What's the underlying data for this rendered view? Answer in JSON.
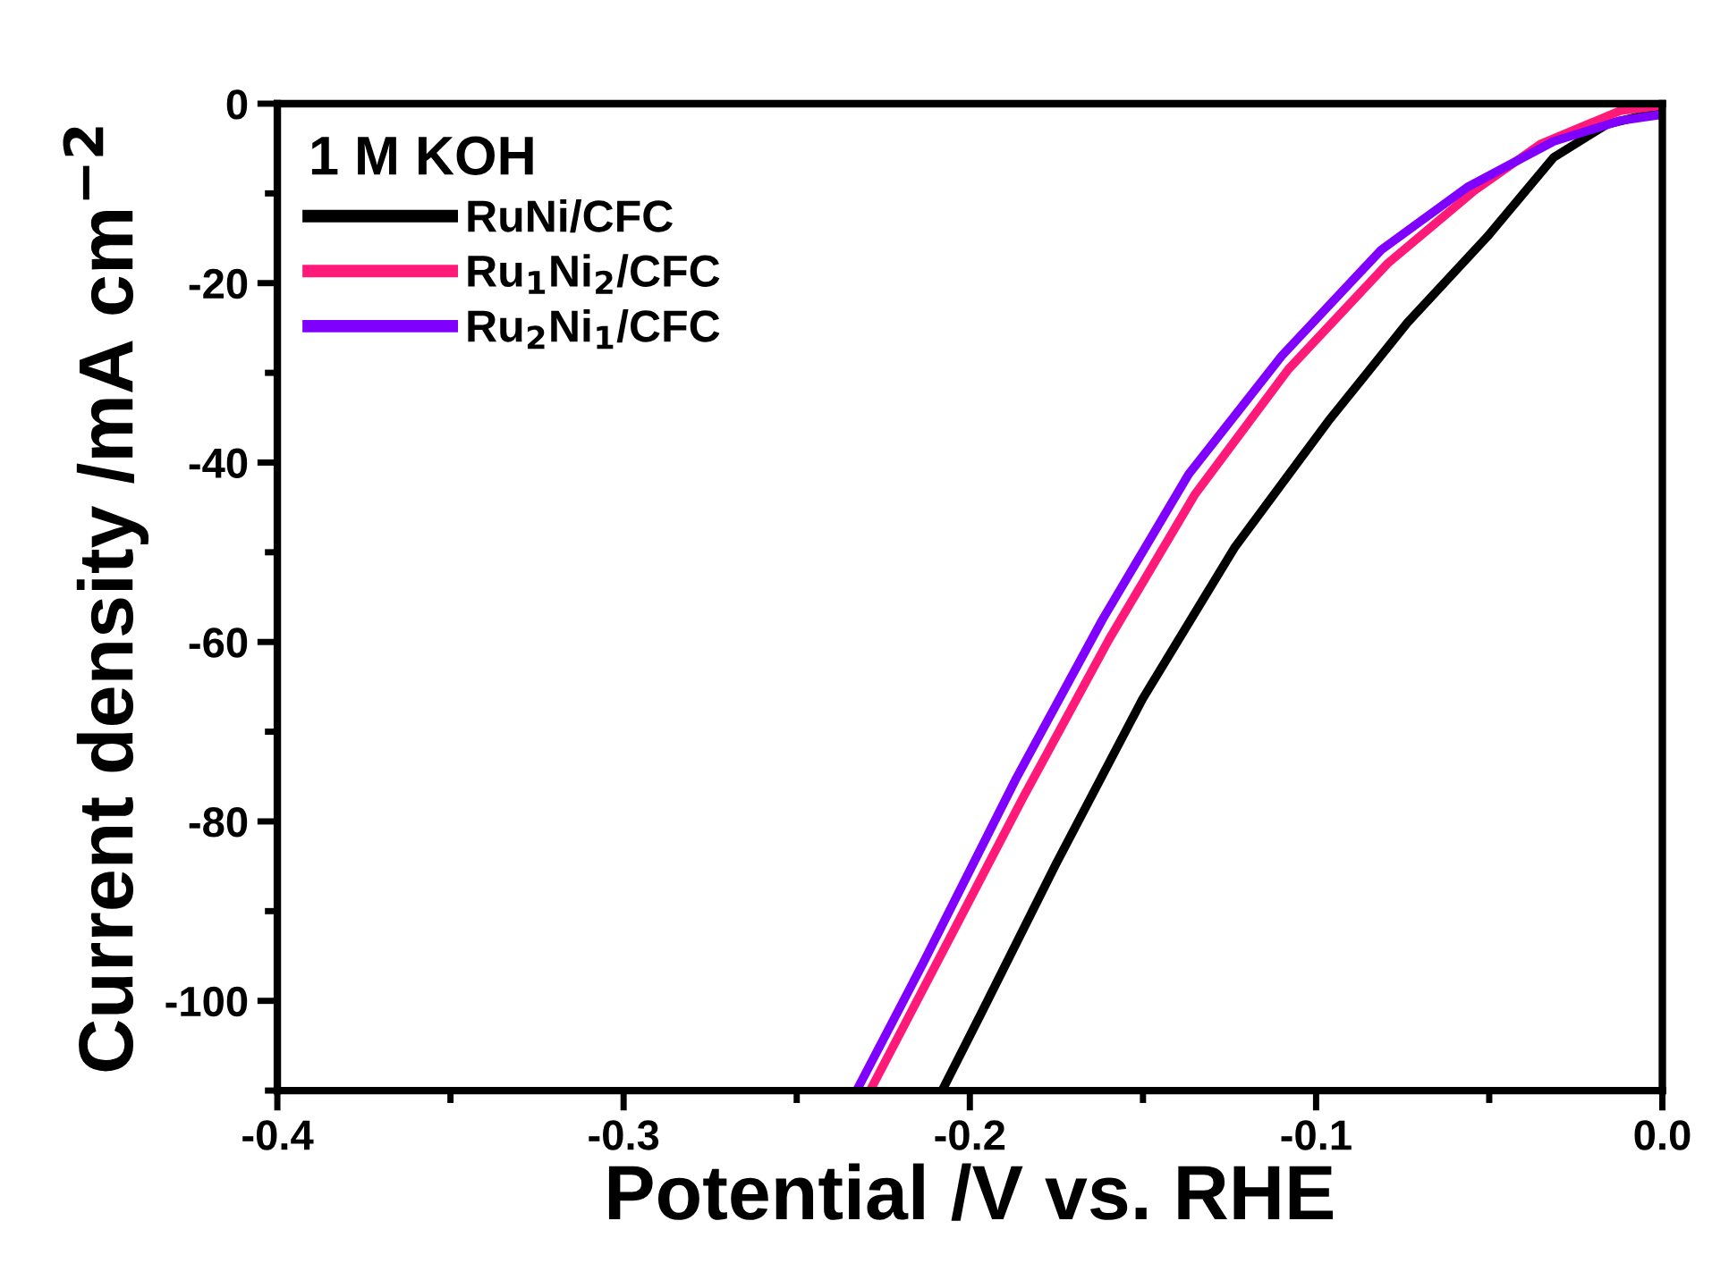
{
  "chart_data": {
    "type": "line",
    "xlabel": "Potential /V vs. RHE",
    "ylabel": "Current density /mA cm$^{−2}$",
    "legend_title": "1 M KOH",
    "legend": "top left",
    "grid": false,
    "line_style": "solid",
    "marker": "none",
    "xlim": [
      -0.4,
      0.0
    ],
    "ylim": [
      -110,
      0
    ],
    "xticks": [
      -0.4,
      {
        "value": -0.35,
        "label": null
      },
      -0.3,
      {
        "value": -0.25,
        "label": null
      },
      -0.2,
      {
        "value": -0.15,
        "label": null
      },
      -0.1,
      {
        "value": -0.05,
        "label": null
      },
      {
        "value": 0,
        "label": "0.0"
      }
    ],
    "yticks": [
      {
        "value": -110,
        "label": null
      },
      -100,
      {
        "value": -90,
        "label": null
      },
      -80,
      {
        "value": -70,
        "label": null
      },
      -60,
      {
        "value": -50,
        "label": null
      },
      -40,
      {
        "value": -30,
        "label": null
      },
      -20,
      {
        "value": -10,
        "label": null
      },
      0
    ],
    "series": [
      {
        "name": "RuNi/CFC",
        "color": "#000000",
        "x": [
          -0.208,
          -0.1962,
          -0.1752,
          -0.1502,
          -0.1234,
          -0.0965,
          -0.0736,
          -0.0505,
          -0.0314,
          -0.016,
          0.0
        ],
        "values": [
          -110,
          -101.0,
          -84.8,
          -66.4,
          -49.4,
          -35.4,
          -24.4,
          -14.8,
          -6.0,
          -2.3,
          -0.8
        ]
      },
      {
        "name": "Ru$_{1}$Ni$_{2}$/CFC",
        "color": "#ff1a7a",
        "x": [
          -0.2288,
          -0.2116,
          -0.1847,
          -0.1598,
          -0.1349,
          -0.108,
          -0.0793,
          -0.0543,
          -0.0352,
          -0.0122,
          0.0
        ],
        "values": [
          -110,
          -97.3,
          -77.4,
          -59.7,
          -43.5,
          -29.6,
          -17.8,
          -9.7,
          -4.5,
          -0.8,
          -0.2
        ]
      },
      {
        "name": "Ru$_{2}$Ni$_{1}$/CFC",
        "color": "#8000ff",
        "x": [
          -0.2327,
          -0.2135,
          -0.1866,
          -0.1617,
          -0.1368,
          -0.1099,
          -0.0812,
          -0.0563,
          -0.0314,
          -0.0122,
          0.0
        ],
        "values": [
          -110,
          -95.8,
          -75.2,
          -57.5,
          -41.3,
          -28.1,
          -16.3,
          -9.3,
          -4.2,
          -1.9,
          -1.2
        ]
      }
    ]
  }
}
